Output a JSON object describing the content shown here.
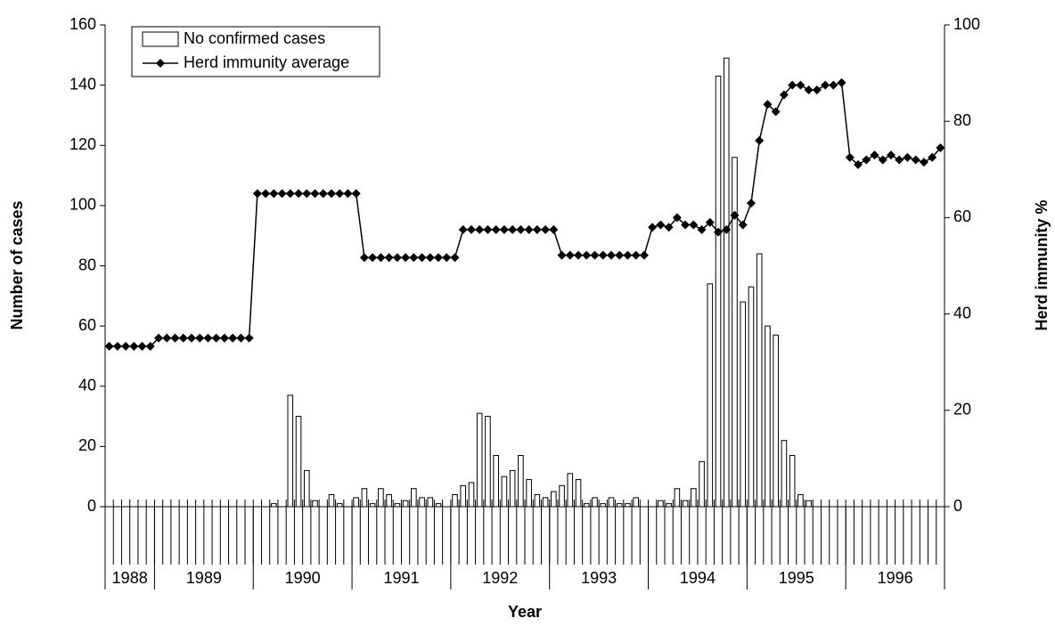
{
  "chart_data": {
    "type": "bar_line",
    "x_label": "Year",
    "y_label": "Number of cases",
    "y2_label": "Herd immunity %",
    "categories": [
      null,
      null,
      null,
      null,
      null,
      null,
      null,
      null,
      null,
      null,
      null,
      null,
      null,
      null,
      null,
      null,
      null,
      null,
      null,
      null,
      null,
      null,
      null,
      null,
      null,
      null,
      null,
      null,
      null,
      null,
      null,
      null,
      null,
      null,
      null,
      null,
      null,
      null,
      null,
      null,
      null,
      null,
      null,
      null,
      null,
      null,
      null,
      null,
      null,
      null,
      null,
      null,
      null,
      null,
      null,
      null,
      null,
      null,
      null,
      null,
      null,
      null,
      null,
      null,
      null,
      null,
      null,
      null,
      null,
      null,
      null,
      null,
      null,
      null,
      null,
      null,
      null,
      null,
      null,
      null,
      null,
      null,
      null,
      null,
      null,
      null,
      null,
      null,
      null,
      null,
      null,
      null,
      null,
      null,
      null,
      null,
      null,
      null,
      null,
      null,
      null,
      null
    ],
    "year_groups": [
      {
        "label": "1988",
        "months": 6
      },
      {
        "label": "1989",
        "months": 12
      },
      {
        "label": "1990",
        "months": 12
      },
      {
        "label": "1991",
        "months": 12
      },
      {
        "label": "1992",
        "months": 12
      },
      {
        "label": "1993",
        "months": 12
      },
      {
        "label": "1994",
        "months": 12
      },
      {
        "label": "1995",
        "months": 12
      },
      {
        "label": "1996",
        "months": 12
      }
    ],
    "series": [
      {
        "name": "No confirmed cases",
        "kind": "bar",
        "color": "#ffffff",
        "values": [
          0,
          0,
          0,
          0,
          0,
          0,
          0,
          0,
          0,
          0,
          0,
          0,
          0,
          0,
          0,
          0,
          0,
          0,
          0,
          0,
          1,
          0,
          37,
          30,
          12,
          2,
          0,
          4,
          1,
          0,
          3,
          6,
          1,
          6,
          4,
          1,
          2,
          6,
          3,
          3,
          1,
          0,
          4,
          7,
          8,
          31,
          30,
          17,
          10,
          12,
          17,
          9,
          4,
          3,
          5,
          7,
          11,
          9,
          1,
          3,
          1,
          3,
          1,
          1,
          3,
          0,
          0,
          2,
          1,
          6,
          2,
          6,
          15,
          74,
          143,
          149,
          116,
          68,
          73,
          84,
          60,
          57,
          22,
          17,
          4,
          2,
          0,
          0,
          0,
          0,
          0,
          0,
          0,
          0,
          0,
          0,
          0,
          0,
          0,
          0,
          0,
          0
        ]
      },
      {
        "name": "Herd immunity average",
        "kind": "line",
        "axis": "y2",
        "color": "#000000",
        "values": [
          33.3,
          33.3,
          33.3,
          33.3,
          33.3,
          33.3,
          35,
          35,
          35,
          35,
          35,
          35,
          35,
          35,
          35,
          35,
          35,
          35,
          65,
          65,
          65,
          65,
          65,
          65,
          65,
          65,
          65,
          65,
          65,
          65,
          65,
          51.7,
          51.7,
          51.7,
          51.7,
          51.7,
          51.7,
          51.7,
          51.7,
          51.7,
          51.7,
          51.7,
          51.7,
          57.5,
          57.5,
          57.5,
          57.5,
          57.5,
          57.5,
          57.5,
          57.5,
          57.5,
          57.5,
          57.5,
          57.5,
          52.2,
          52.2,
          52.2,
          52.2,
          52.2,
          52.2,
          52.2,
          52.2,
          52.2,
          52.2,
          52.2,
          58,
          58.5,
          58,
          60,
          58.5,
          58.5,
          57.5,
          59,
          57,
          57.5,
          60.5,
          58.5,
          63,
          76,
          83.5,
          82,
          85.5,
          87.5,
          87.5,
          86.5,
          86.5,
          87.5,
          87.5,
          88,
          72.5,
          71,
          72,
          73,
          72,
          73,
          72,
          72.5,
          72,
          71.5,
          72.5,
          74.5
        ]
      }
    ],
    "ylim": [
      0,
      160
    ],
    "yticks": [
      0,
      20,
      40,
      60,
      80,
      100,
      120,
      140,
      160
    ],
    "y2lim": [
      0,
      100
    ],
    "y2ticks": [
      0,
      20,
      40,
      60,
      80,
      100
    ],
    "legend": "top-left"
  }
}
